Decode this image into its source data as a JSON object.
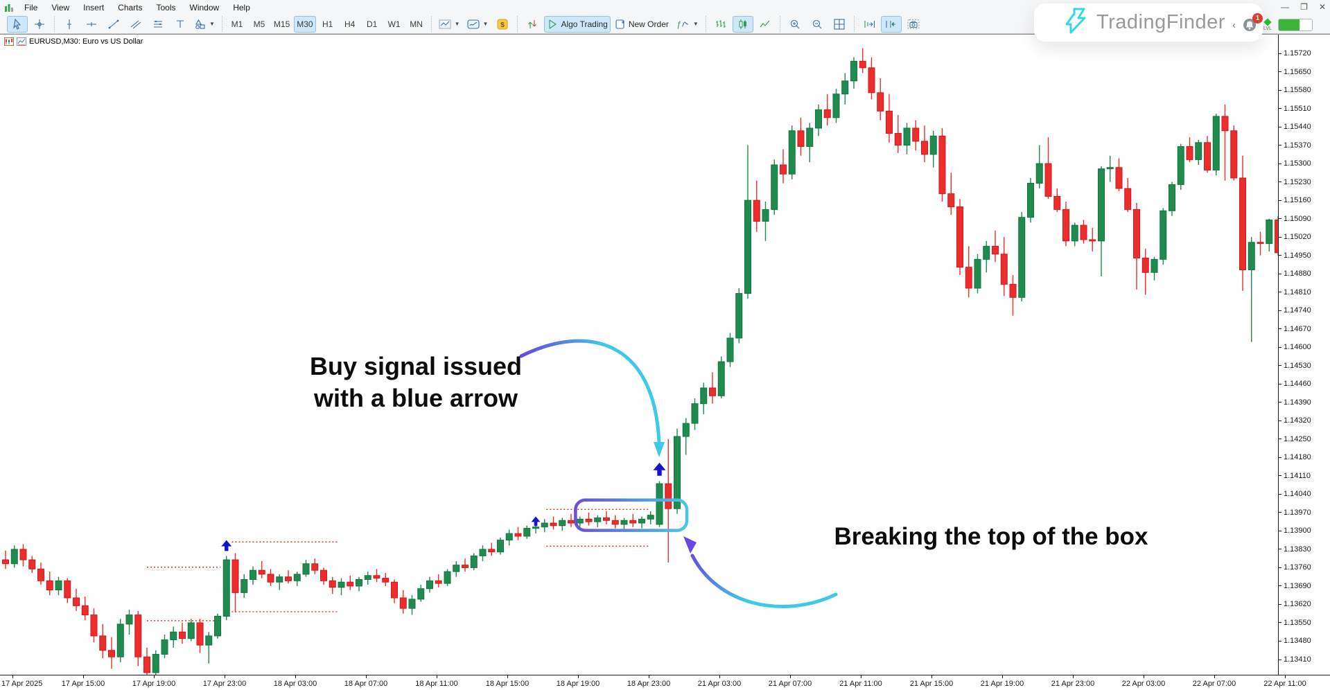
{
  "window": {
    "menu": [
      "File",
      "View",
      "Insert",
      "Charts",
      "Tools",
      "Window",
      "Help"
    ],
    "controls": [
      "minimize",
      "restore",
      "close"
    ]
  },
  "toolbar": {
    "groups": [
      {
        "items": [
          {
            "name": "cursor-tool",
            "icon": "cursor",
            "active": true
          },
          {
            "name": "crosshair-tool",
            "icon": "crosshair"
          }
        ]
      },
      {
        "items": [
          {
            "name": "vertical-line-tool",
            "icon": "vertical-line"
          },
          {
            "name": "horizontal-line-tool",
            "icon": "horizontal-line"
          },
          {
            "name": "trendline-tool",
            "icon": "trendline"
          },
          {
            "name": "channel-tool",
            "icon": "channel"
          },
          {
            "name": "equidistant-channel-tool",
            "icon": "equidistant"
          },
          {
            "name": "text-tool",
            "icon": "text-tool"
          },
          {
            "name": "shapes-tool",
            "icon": "shapes",
            "dropdown": true
          }
        ]
      },
      {
        "items": [
          {
            "name": "timeframe-m1",
            "label": "M1",
            "tf": true
          },
          {
            "name": "timeframe-m5",
            "label": "M5",
            "tf": true
          },
          {
            "name": "timeframe-m15",
            "label": "M15",
            "tf": true
          },
          {
            "name": "timeframe-m30",
            "label": "M30",
            "tf": true,
            "active": true
          },
          {
            "name": "timeframe-h1",
            "label": "H1",
            "tf": true
          },
          {
            "name": "timeframe-h4",
            "label": "H4",
            "tf": true
          },
          {
            "name": "timeframe-d1",
            "label": "D1",
            "tf": true
          },
          {
            "name": "timeframe-w1",
            "label": "W1",
            "tf": true
          },
          {
            "name": "timeframe-mn",
            "label": "MN",
            "tf": true
          }
        ]
      },
      {
        "items": [
          {
            "name": "chart-template-button",
            "icon": "chart-type-line",
            "dropdown": true
          },
          {
            "name": "indicator-window-button",
            "icon": "indicator-window",
            "dropdown": true
          },
          {
            "name": "currency-button",
            "icon": "currency"
          }
        ]
      },
      {
        "items": [
          {
            "name": "depth-of-market-button",
            "icon": "buy-sell-arrows"
          },
          {
            "name": "algo-trading-button",
            "icon": "play",
            "label": "Algo Trading",
            "active": true
          },
          {
            "name": "new-order-button",
            "icon": "new-order",
            "label": "New Order"
          },
          {
            "name": "indicators-list-button",
            "icon": "fx-indicators",
            "dropdown": true
          }
        ]
      },
      {
        "items": [
          {
            "name": "bars-chart-button",
            "icon": "bars-chart"
          },
          {
            "name": "candles-chart-button",
            "icon": "candles-chart",
            "active": true
          },
          {
            "name": "line-chart-button",
            "icon": "line-chart"
          }
        ]
      },
      {
        "items": [
          {
            "name": "zoom-in-button",
            "icon": "zoom-in"
          },
          {
            "name": "zoom-out-button",
            "icon": "zoom-out"
          },
          {
            "name": "tile-windows-button",
            "icon": "tile-windows"
          }
        ]
      },
      {
        "items": [
          {
            "name": "shift-end-button",
            "icon": "shift-right"
          },
          {
            "name": "auto-scroll-button",
            "icon": "auto-scroll",
            "active": true
          },
          {
            "name": "screenshot-button",
            "icon": "screenshot"
          }
        ]
      }
    ]
  },
  "chart": {
    "symbol_label": "EURUSD,M30: Euro vs US Dollar"
  },
  "watermark": {
    "brand": "TradingFinder",
    "badge_count": "1",
    "lvl_label": "LVL"
  },
  "annotations": {
    "buy_line1": "Buy signal issued",
    "buy_line2": "with a blue arrow",
    "breaking": "Breaking the top of the box"
  },
  "axes": {
    "price_ticks": [
      "1.15720",
      "1.15650",
      "1.15580",
      "1.15510",
      "1.15440",
      "1.15370",
      "1.15300",
      "1.15230",
      "1.15160",
      "1.15090",
      "1.15020",
      "1.14950",
      "1.14880",
      "1.14810",
      "1.14740",
      "1.14670",
      "1.14600",
      "1.14530",
      "1.14460",
      "1.14390",
      "1.14320",
      "1.14250",
      "1.14180",
      "1.14110",
      "1.14040",
      "1.13970",
      "1.13900",
      "1.13830",
      "1.13760",
      "1.13690",
      "1.13620",
      "1.13550",
      "1.13480",
      "1.13410"
    ],
    "time_ticks": [
      "17 Apr 2025",
      "17 Apr 15:00",
      "17 Apr 19:00",
      "17 Apr 23:00",
      "18 Apr 03:00",
      "18 Apr 07:00",
      "18 Apr 11:00",
      "18 Apr 15:00",
      "18 Apr 19:00",
      "18 Apr 23:00",
      "21 Apr 03:00",
      "21 Apr 07:00",
      "21 Apr 11:00",
      "21 Apr 15:00",
      "21 Apr 19:00",
      "21 Apr 23:00",
      "22 Apr 03:00",
      "22 Apr 07:00",
      "22 Apr 11:00"
    ]
  },
  "chart_data": {
    "type": "candlestick",
    "symbol": "EURUSD",
    "timeframe": "M30",
    "title": "EURUSD,M30: Euro vs US Dollar",
    "y_range": [
      1.1341,
      1.1572
    ],
    "y_tick_step": 0.0007,
    "grid": false,
    "colors": {
      "up_fill": "#1f8b4e",
      "up_stroke": "#14753f",
      "down_fill": "#ee2c2c",
      "down_stroke": "#c51f1f",
      "signal_arrow": "#1414cc",
      "dotted_range": "#c0392b",
      "box_gradient_start": "#6a4fd8",
      "box_gradient_end": "#45c8e8",
      "curve_cyan": "#3fc9e8",
      "curve_purple": "#6a48dd"
    },
    "candles": [
      [
        1.1379,
        1.13825,
        1.13755,
        1.13775
      ],
      [
        1.13775,
        1.13845,
        1.1376,
        1.1383
      ],
      [
        1.1383,
        1.1385,
        1.13765,
        1.1379
      ],
      [
        1.1379,
        1.13805,
        1.1374,
        1.13755
      ],
      [
        1.13755,
        1.1378,
        1.13695,
        1.1371
      ],
      [
        1.1371,
        1.13745,
        1.13655,
        1.13675
      ],
      [
        1.13675,
        1.13725,
        1.13655,
        1.1371
      ],
      [
        1.1371,
        1.1372,
        1.13625,
        1.13645
      ],
      [
        1.13645,
        1.1368,
        1.13595,
        1.13615
      ],
      [
        1.13615,
        1.1365,
        1.1356,
        1.1358
      ],
      [
        1.1358,
        1.13605,
        1.13475,
        1.135
      ],
      [
        1.135,
        1.13545,
        1.13415,
        1.13445
      ],
      [
        1.13445,
        1.13495,
        1.13375,
        1.1342
      ],
      [
        1.1342,
        1.13565,
        1.134,
        1.13545
      ],
      [
        1.13545,
        1.136,
        1.13505,
        1.1358
      ],
      [
        1.1358,
        1.13595,
        1.13385,
        1.1342
      ],
      [
        1.1342,
        1.13455,
        1.1333,
        1.1336
      ],
      [
        1.1336,
        1.13445,
        1.1334,
        1.1343
      ],
      [
        1.1343,
        1.13505,
        1.13415,
        1.13485
      ],
      [
        1.13485,
        1.13535,
        1.13455,
        1.13515
      ],
      [
        1.13515,
        1.1355,
        1.1347,
        1.1349
      ],
      [
        1.1349,
        1.13565,
        1.1348,
        1.1355
      ],
      [
        1.1355,
        1.13565,
        1.13435,
        1.13465
      ],
      [
        1.13465,
        1.13515,
        1.13395,
        1.135
      ],
      [
        1.135,
        1.13585,
        1.1349,
        1.13575
      ],
      [
        1.13575,
        1.13805,
        1.1356,
        1.1379
      ],
      [
        1.1379,
        1.13815,
        1.1359,
        1.13665
      ],
      [
        1.13665,
        1.13735,
        1.13645,
        1.13715
      ],
      [
        1.13715,
        1.13765,
        1.13695,
        1.1375
      ],
      [
        1.1375,
        1.13785,
        1.1372,
        1.13735
      ],
      [
        1.13735,
        1.13755,
        1.1369,
        1.13705
      ],
      [
        1.13705,
        1.13735,
        1.13675,
        1.13725
      ],
      [
        1.13725,
        1.1375,
        1.137,
        1.1371
      ],
      [
        1.1371,
        1.13745,
        1.1369,
        1.13735
      ],
      [
        1.13735,
        1.1379,
        1.13725,
        1.13775
      ],
      [
        1.13775,
        1.13795,
        1.13735,
        1.1375
      ],
      [
        1.1375,
        1.1376,
        1.13695,
        1.1371
      ],
      [
        1.1371,
        1.13725,
        1.1366,
        1.13685
      ],
      [
        1.13685,
        1.1372,
        1.13655,
        1.13705
      ],
      [
        1.13705,
        1.1373,
        1.13675,
        1.1369
      ],
      [
        1.1369,
        1.13725,
        1.1367,
        1.13715
      ],
      [
        1.13715,
        1.13745,
        1.13695,
        1.1373
      ],
      [
        1.1373,
        1.13755,
        1.13705,
        1.1372
      ],
      [
        1.1372,
        1.1374,
        1.1369,
        1.13705
      ],
      [
        1.13705,
        1.13715,
        1.13625,
        1.13645
      ],
      [
        1.13645,
        1.13675,
        1.13585,
        1.13605
      ],
      [
        1.13605,
        1.13655,
        1.1358,
        1.1364
      ],
      [
        1.1364,
        1.13695,
        1.1363,
        1.1368
      ],
      [
        1.1368,
        1.13725,
        1.13665,
        1.1371
      ],
      [
        1.1371,
        1.13735,
        1.13685,
        1.137
      ],
      [
        1.137,
        1.13755,
        1.1369,
        1.13745
      ],
      [
        1.13745,
        1.13785,
        1.13725,
        1.1377
      ],
      [
        1.1377,
        1.13795,
        1.13745,
        1.1376
      ],
      [
        1.1376,
        1.13815,
        1.1375,
        1.13805
      ],
      [
        1.13805,
        1.13845,
        1.13785,
        1.1383
      ],
      [
        1.1383,
        1.13855,
        1.13805,
        1.1382
      ],
      [
        1.1382,
        1.13875,
        1.1381,
        1.13865
      ],
      [
        1.13865,
        1.13905,
        1.13845,
        1.1389
      ],
      [
        1.1389,
        1.13915,
        1.13865,
        1.1388
      ],
      [
        1.1388,
        1.1392,
        1.1387,
        1.1391
      ],
      [
        1.1391,
        1.1393,
        1.1389,
        1.13915
      ],
      [
        1.13915,
        1.13945,
        1.13895,
        1.1393
      ],
      [
        1.1393,
        1.13955,
        1.13905,
        1.1392
      ],
      [
        1.1392,
        1.1395,
        1.139,
        1.1394
      ],
      [
        1.1394,
        1.13965,
        1.13915,
        1.1393
      ],
      [
        1.1393,
        1.13955,
        1.13905,
        1.13945
      ],
      [
        1.13945,
        1.1397,
        1.1392,
        1.13935
      ],
      [
        1.13935,
        1.1396,
        1.13915,
        1.1395
      ],
      [
        1.1395,
        1.13975,
        1.13925,
        1.1394
      ],
      [
        1.1394,
        1.1396,
        1.1391,
        1.13925
      ],
      [
        1.13925,
        1.1395,
        1.139,
        1.1394
      ],
      [
        1.1394,
        1.13965,
        1.13915,
        1.1393
      ],
      [
        1.1393,
        1.13955,
        1.1391,
        1.13945
      ],
      [
        1.13945,
        1.13975,
        1.13925,
        1.1396
      ],
      [
        1.13925,
        1.1409,
        1.13915,
        1.1408
      ],
      [
        1.1408,
        1.1425,
        1.1378,
        1.13985
      ],
      [
        1.13985,
        1.1429,
        1.13965,
        1.1426
      ],
      [
        1.1426,
        1.1433,
        1.1419,
        1.1431
      ],
      [
        1.1431,
        1.14405,
        1.14285,
        1.14385
      ],
      [
        1.14385,
        1.14465,
        1.14345,
        1.14445
      ],
      [
        1.14445,
        1.14505,
        1.14385,
        1.14415
      ],
      [
        1.14415,
        1.14565,
        1.14405,
        1.14545
      ],
      [
        1.14545,
        1.14655,
        1.14525,
        1.14635
      ],
      [
        1.14635,
        1.14825,
        1.14615,
        1.14805
      ],
      [
        1.14805,
        1.1537,
        1.14785,
        1.1516
      ],
      [
        1.1516,
        1.15235,
        1.1504,
        1.1508
      ],
      [
        1.1508,
        1.15155,
        1.15005,
        1.15125
      ],
      [
        1.15125,
        1.15315,
        1.15105,
        1.15295
      ],
      [
        1.15295,
        1.15355,
        1.15225,
        1.1526
      ],
      [
        1.1526,
        1.15445,
        1.1524,
        1.15425
      ],
      [
        1.15425,
        1.15475,
        1.1533,
        1.15365
      ],
      [
        1.15365,
        1.15455,
        1.15305,
        1.15435
      ],
      [
        1.15435,
        1.15525,
        1.15405,
        1.15505
      ],
      [
        1.15505,
        1.15565,
        1.15445,
        1.15475
      ],
      [
        1.15475,
        1.15585,
        1.15455,
        1.15565
      ],
      [
        1.15565,
        1.15645,
        1.15525,
        1.15615
      ],
      [
        1.15615,
        1.15705,
        1.15585,
        1.1569
      ],
      [
        1.1569,
        1.1574,
        1.15645,
        1.15665
      ],
      [
        1.15665,
        1.15705,
        1.15545,
        1.1557
      ],
      [
        1.1557,
        1.15625,
        1.15465,
        1.155
      ],
      [
        1.155,
        1.15565,
        1.1538,
        1.15415
      ],
      [
        1.15415,
        1.15485,
        1.1534,
        1.1537
      ],
      [
        1.1537,
        1.15455,
        1.15335,
        1.15435
      ],
      [
        1.15435,
        1.15465,
        1.1535,
        1.15385
      ],
      [
        1.15385,
        1.15445,
        1.15305,
        1.15335
      ],
      [
        1.15335,
        1.15425,
        1.15285,
        1.15405
      ],
      [
        1.15405,
        1.15435,
        1.15155,
        1.15185
      ],
      [
        1.15185,
        1.15265,
        1.15105,
        1.15135
      ],
      [
        1.15135,
        1.15165,
        1.14875,
        1.14905
      ],
      [
        1.14905,
        1.14985,
        1.1479,
        1.14825
      ],
      [
        1.14825,
        1.14955,
        1.14805,
        1.14935
      ],
      [
        1.14935,
        1.15005,
        1.14885,
        1.14985
      ],
      [
        1.14985,
        1.15045,
        1.14925,
        1.14955
      ],
      [
        1.14955,
        1.1502,
        1.14795,
        1.1484
      ],
      [
        1.1484,
        1.14875,
        1.1472,
        1.1479
      ],
      [
        1.1479,
        1.15115,
        1.14775,
        1.15095
      ],
      [
        1.15095,
        1.15245,
        1.15075,
        1.15225
      ],
      [
        1.15225,
        1.1537,
        1.15205,
        1.153
      ],
      [
        1.153,
        1.154,
        1.15165,
        1.15175
      ],
      [
        1.15175,
        1.15205,
        1.15115,
        1.15125
      ],
      [
        1.15125,
        1.15155,
        1.14985,
        1.15005
      ],
      [
        1.15005,
        1.15075,
        1.14985,
        1.15065
      ],
      [
        1.15065,
        1.15085,
        1.14995,
        1.1501
      ],
      [
        1.1501,
        1.15055,
        1.14965,
        1.15005
      ],
      [
        1.15005,
        1.1529,
        1.1487,
        1.1528
      ],
      [
        1.1528,
        1.1533,
        1.1523,
        1.15285
      ],
      [
        1.15285,
        1.1532,
        1.15195,
        1.15205
      ],
      [
        1.15205,
        1.15245,
        1.15115,
        1.15125
      ],
      [
        1.15125,
        1.1515,
        1.1482,
        1.1494
      ],
      [
        1.1494,
        1.14975,
        1.148,
        1.14885
      ],
      [
        1.14885,
        1.14945,
        1.14855,
        1.14935
      ],
      [
        1.14935,
        1.1513,
        1.14915,
        1.1512
      ],
      [
        1.1512,
        1.1523,
        1.151,
        1.1522
      ],
      [
        1.1522,
        1.15375,
        1.152,
        1.15365
      ],
      [
        1.15365,
        1.154,
        1.15305,
        1.15315
      ],
      [
        1.15315,
        1.1539,
        1.15295,
        1.1538
      ],
      [
        1.1538,
        1.15405,
        1.15265,
        1.15275
      ],
      [
        1.15275,
        1.1549,
        1.15255,
        1.1548
      ],
      [
        1.1548,
        1.15525,
        1.15235,
        1.15425
      ],
      [
        1.15425,
        1.15445,
        1.15235,
        1.15245
      ],
      [
        1.15245,
        1.1533,
        1.14815,
        1.14895
      ],
      [
        1.14895,
        1.1502,
        1.1462,
        1.15
      ],
      [
        1.15,
        1.1504,
        1.1495,
        1.14995
      ],
      [
        1.14995,
        1.1509,
        1.14965,
        1.15085
      ],
      [
        1.15085,
        1.151,
        1.1495,
        1.1496
      ]
    ],
    "signals": [
      {
        "index": 25,
        "price": 1.13865,
        "size": 15,
        "type": "buy"
      },
      {
        "index": 60,
        "price": 1.13955,
        "size": 13,
        "type": "buy"
      },
      {
        "index": 74,
        "price": 1.1416,
        "size": 18,
        "type": "buy"
      }
    ],
    "box": {
      "index_start": 64.5,
      "index_end": 77.1,
      "price_top": 1.14018,
      "price_bottom": 1.13902
    },
    "dotted_ranges": [
      {
        "i1": 16.0,
        "i2": 24.3,
        "top": 1.13762,
        "bottom": 1.13558
      },
      {
        "i1": 25.6,
        "i2": 37.7,
        "top": 1.13858,
        "bottom": 1.13592
      },
      {
        "i1": 61.2,
        "i2": 72.9,
        "top": 1.13982,
        "bottom": 1.13842
      }
    ]
  }
}
